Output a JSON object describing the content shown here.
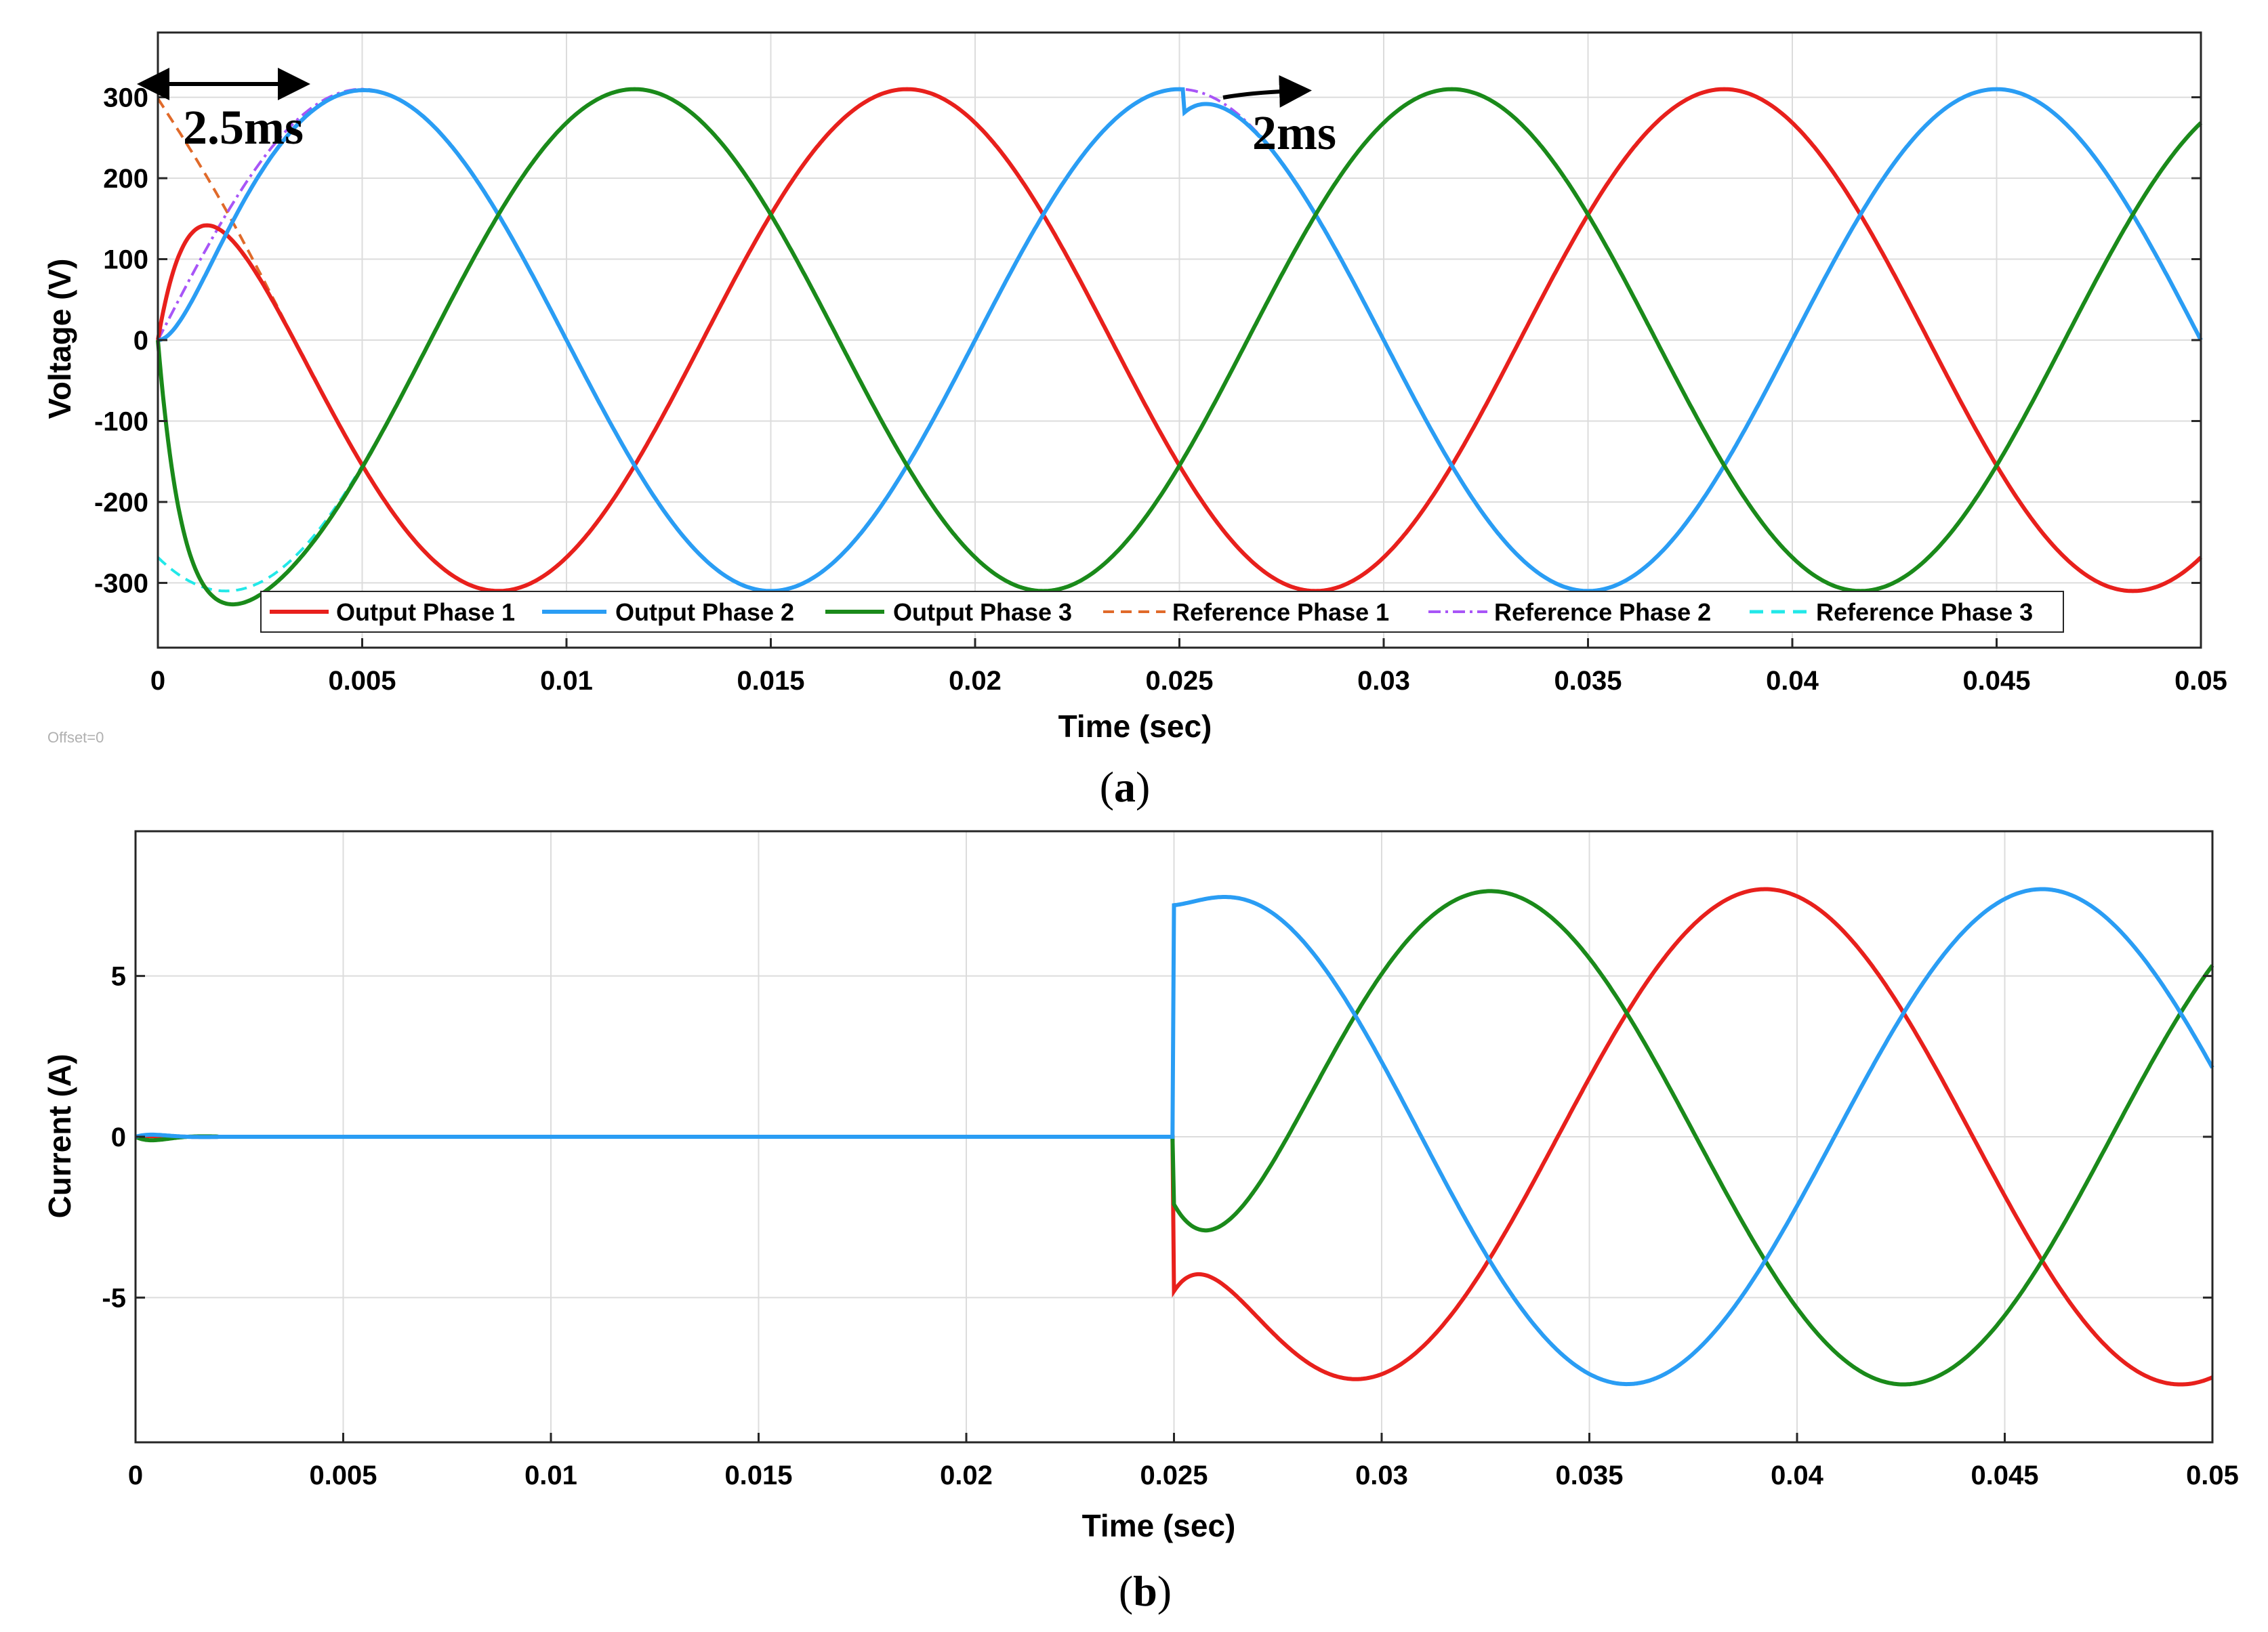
{
  "chart_data": [
    {
      "id": "a",
      "type": "line",
      "caption": "(a)",
      "xlabel": "Time (sec)",
      "ylabel": "Voltage (V)",
      "xlim": [
        0,
        0.05
      ],
      "ylim": [
        -380,
        380
      ],
      "xticks": [
        0,
        0.005,
        0.01,
        0.015,
        0.02,
        0.025,
        0.03,
        0.035,
        0.04,
        0.045,
        0.05
      ],
      "xtick_labels": [
        "0",
        "0.005",
        "0.01",
        "0.015",
        "0.02",
        "0.025",
        "0.03",
        "0.035",
        "0.04",
        "0.045",
        "0.05"
      ],
      "yticks": [
        300,
        200,
        100,
        0,
        -100,
        -200,
        -300
      ],
      "ytick_labels": [
        "300",
        "200",
        "100",
        "0",
        "-100",
        "-200",
        "-300"
      ],
      "grid": true,
      "legend_position": "bottom",
      "frequency_hz": 50,
      "amplitude_v": 310,
      "series": [
        {
          "name": "Output Phase 1",
          "color": "#e8201c",
          "style": "solid",
          "phase_deg": 120
        },
        {
          "name": "Output Phase 2",
          "color": "#2a9df4",
          "style": "solid",
          "phase_deg": 0
        },
        {
          "name": "Output Phase 3",
          "color": "#1a8a1a",
          "style": "solid",
          "phase_deg": -120
        },
        {
          "name": "Reference Phase 1",
          "color": "#e06a2a",
          "style": "dashed",
          "phase_deg": 120
        },
        {
          "name": "Reference Phase 2",
          "color": "#a855f7",
          "style": "dashdot",
          "phase_deg": 0
        },
        {
          "name": "Reference Phase 3",
          "color": "#22e8e8",
          "style": "dashed",
          "phase_deg": -120
        }
      ],
      "annotations": [
        {
          "text": "2.5ms",
          "x_range": [
            0,
            0.0035
          ],
          "y": 305
        },
        {
          "text": "2ms",
          "x_range": [
            0.0262,
            0.0285
          ],
          "y": 305
        }
      ],
      "offset_note": "Offset=0"
    },
    {
      "id": "b",
      "type": "line",
      "caption": "(b)",
      "xlabel": "Time (sec)",
      "ylabel": "Current (A)",
      "xlim": [
        0,
        0.05
      ],
      "ylim": [
        -9.5,
        9.5
      ],
      "xticks": [
        0,
        0.005,
        0.01,
        0.015,
        0.02,
        0.025,
        0.03,
        0.035,
        0.04,
        0.045,
        0.05
      ],
      "xtick_labels": [
        "0",
        "0.005",
        "0.01",
        "0.015",
        "0.02",
        "0.025",
        "0.03",
        "0.035",
        "0.04",
        "0.045",
        "0.05"
      ],
      "yticks": [
        5,
        0,
        -5
      ],
      "ytick_labels": [
        "5",
        "0",
        "-5"
      ],
      "grid": true,
      "load_step_time": 0.025,
      "amplitude_a": 7.7,
      "series": [
        {
          "name": "Phase 1",
          "color": "#e8201c",
          "phase_deg": 120
        },
        {
          "name": "Phase 2",
          "color": "#2a9df4",
          "phase_deg": 0
        },
        {
          "name": "Phase 3",
          "color": "#1a8a1a",
          "phase_deg": -120
        }
      ]
    }
  ]
}
